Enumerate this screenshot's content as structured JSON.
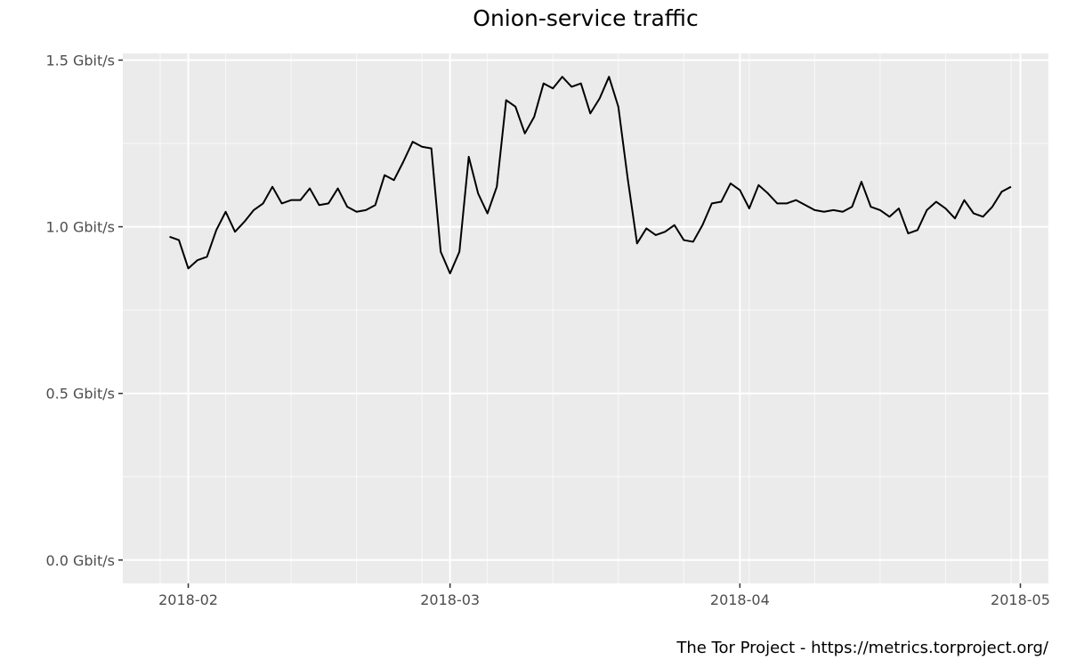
{
  "chart_data": {
    "type": "line",
    "title": "Onion-service traffic",
    "caption": "The Tor Project - https://metrics.torproject.org/",
    "xlabel": "",
    "ylabel": "",
    "x_tick_labels": [
      "2018-02",
      "2018-03",
      "2018-04",
      "2018-05"
    ],
    "x_ticks": [
      "2018-02-01",
      "2018-03-01",
      "2018-04-01",
      "2018-05-01"
    ],
    "y_tick_labels": [
      "0.0 Gbit/s",
      "0.5 Gbit/s",
      "1.0 Gbit/s",
      "1.5 Gbit/s"
    ],
    "y_ticks": [
      0.0,
      0.5,
      1.0,
      1.5
    ],
    "xlim": [
      "2018-01-25",
      "2018-05-04"
    ],
    "ylim": [
      -0.07,
      1.52
    ],
    "grid": true,
    "legend": "none",
    "line_color": "#000000",
    "panel_color": "#ebebeb",
    "series": [
      {
        "x": [
          "2018-01-30",
          "2018-01-31",
          "2018-02-01",
          "2018-02-02",
          "2018-02-03",
          "2018-02-04",
          "2018-02-05",
          "2018-02-06",
          "2018-02-07",
          "2018-02-08",
          "2018-02-09",
          "2018-02-10",
          "2018-02-11",
          "2018-02-12",
          "2018-02-13",
          "2018-02-14",
          "2018-02-15",
          "2018-02-16",
          "2018-02-17",
          "2018-02-18",
          "2018-02-19",
          "2018-02-20",
          "2018-02-21",
          "2018-02-22",
          "2018-02-23",
          "2018-02-24",
          "2018-02-25",
          "2018-02-26",
          "2018-02-27",
          "2018-02-28",
          "2018-03-01",
          "2018-03-02",
          "2018-03-03",
          "2018-03-04",
          "2018-03-05",
          "2018-03-06",
          "2018-03-07",
          "2018-03-08",
          "2018-03-09",
          "2018-03-10",
          "2018-03-11",
          "2018-03-12",
          "2018-03-13",
          "2018-03-14",
          "2018-03-15",
          "2018-03-16",
          "2018-03-17",
          "2018-03-18",
          "2018-03-19",
          "2018-03-20",
          "2018-03-21",
          "2018-03-22",
          "2018-03-23",
          "2018-03-24",
          "2018-03-25",
          "2018-03-26",
          "2018-03-27",
          "2018-03-28",
          "2018-03-29",
          "2018-03-30",
          "2018-03-31",
          "2018-04-01",
          "2018-04-02",
          "2018-04-03",
          "2018-04-04",
          "2018-04-05",
          "2018-04-06",
          "2018-04-07",
          "2018-04-08",
          "2018-04-09",
          "2018-04-10",
          "2018-04-11",
          "2018-04-12",
          "2018-04-13",
          "2018-04-14",
          "2018-04-15",
          "2018-04-16",
          "2018-04-17",
          "2018-04-18",
          "2018-04-19",
          "2018-04-20",
          "2018-04-21",
          "2018-04-22",
          "2018-04-23",
          "2018-04-24",
          "2018-04-25",
          "2018-04-26",
          "2018-04-27",
          "2018-04-28",
          "2018-04-29",
          "2018-04-30"
        ],
        "values": [
          0.97,
          0.96,
          0.875,
          0.9,
          0.91,
          0.99,
          1.045,
          0.985,
          1.015,
          1.05,
          1.07,
          1.12,
          1.07,
          1.08,
          1.08,
          1.115,
          1.065,
          1.07,
          1.115,
          1.06,
          1.045,
          1.05,
          1.065,
          1.155,
          1.14,
          1.195,
          1.255,
          1.24,
          1.235,
          0.925,
          0.86,
          0.925,
          1.21,
          1.1,
          1.04,
          1.12,
          1.38,
          1.36,
          1.28,
          1.33,
          1.43,
          1.415,
          1.45,
          1.42,
          1.43,
          1.34,
          1.385,
          1.45,
          1.36,
          1.145,
          0.95,
          0.995,
          0.975,
          0.985,
          1.005,
          0.96,
          0.955,
          1.005,
          1.07,
          1.075,
          1.13,
          1.11,
          1.055,
          1.125,
          1.1,
          1.07,
          1.07,
          1.08,
          1.065,
          1.05,
          1.045,
          1.05,
          1.045,
          1.06,
          1.135,
          1.06,
          1.05,
          1.03,
          1.055,
          0.98,
          0.99,
          1.05,
          1.075,
          1.055,
          1.025,
          1.08,
          1.04,
          1.03,
          1.06,
          1.105,
          1.12
        ]
      }
    ]
  }
}
